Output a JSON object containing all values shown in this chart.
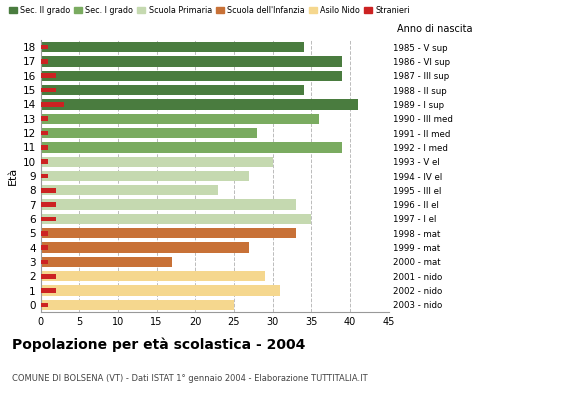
{
  "ages": [
    18,
    17,
    16,
    15,
    14,
    13,
    12,
    11,
    10,
    9,
    8,
    7,
    6,
    5,
    4,
    3,
    2,
    1,
    0
  ],
  "values": [
    34,
    39,
    39,
    34,
    41,
    36,
    28,
    39,
    30,
    27,
    23,
    33,
    35,
    33,
    27,
    17,
    29,
    31,
    25
  ],
  "stranieri": [
    1,
    1,
    2,
    2,
    3,
    1,
    1,
    1,
    1,
    1,
    2,
    2,
    2,
    1,
    1,
    1,
    2,
    2,
    1
  ],
  "categories": {
    "sec2": [
      18,
      17,
      16,
      15,
      14
    ],
    "sec1": [
      13,
      12,
      11
    ],
    "primaria": [
      10,
      9,
      8,
      7,
      6
    ],
    "infanzia": [
      5,
      4,
      3
    ],
    "nido": [
      2,
      1,
      0
    ]
  },
  "colors": {
    "sec2": "#4a7c3f",
    "sec1": "#7aab60",
    "primaria": "#c5d9b0",
    "infanzia": "#c87137",
    "nido": "#f5d78e",
    "stranieri": "#cc2222"
  },
  "right_labels": [
    "1985 - V sup",
    "1986 - VI sup",
    "1987 - III sup",
    "1988 - II sup",
    "1989 - I sup",
    "1990 - III med",
    "1991 - II med",
    "1992 - I med",
    "1993 - V el",
    "1994 - IV el",
    "1995 - III el",
    "1996 - II el",
    "1997 - I el",
    "1998 - mat",
    "1999 - mat",
    "2000 - mat",
    "2001 - nido",
    "2002 - nido",
    "2003 - nido"
  ],
  "title": "Popolazione per età scolastica - 2004",
  "subtitle": "COMUNE DI BOLSENA (VT) - Dati ISTAT 1° gennaio 2004 - Elaborazione TUTTITALIA.IT",
  "ylabel": "Età",
  "right_ylabel": "Anno di nascita",
  "xlim": [
    0,
    45
  ],
  "xticks": [
    0,
    5,
    10,
    15,
    20,
    25,
    30,
    35,
    40,
    45
  ],
  "legend_labels": [
    "Sec. II grado",
    "Sec. I grado",
    "Scuola Primaria",
    "Scuola dell'Infanzia",
    "Asilo Nido",
    "Stranieri"
  ],
  "legend_colors": [
    "#4a7c3f",
    "#7aab60",
    "#c5d9b0",
    "#c87137",
    "#f5d78e",
    "#cc2222"
  ],
  "background_color": "#ffffff",
  "grid_color": "#bbbbbb"
}
